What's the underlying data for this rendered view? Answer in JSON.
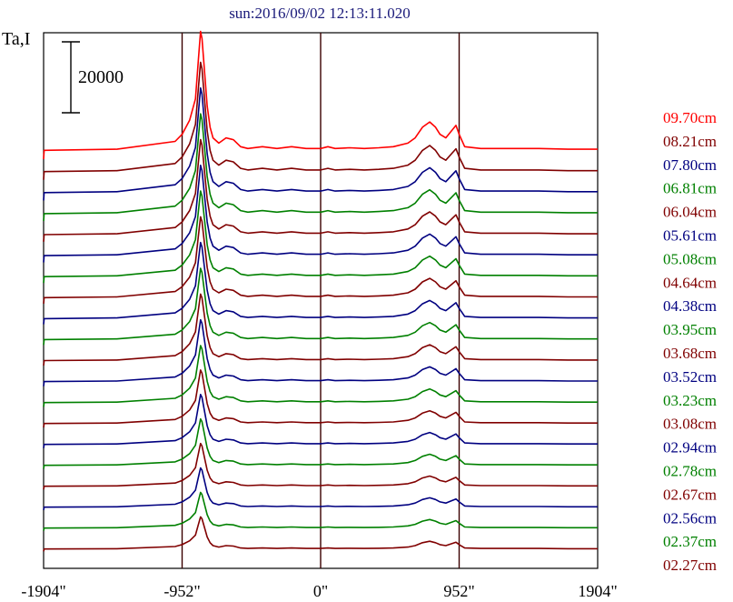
{
  "chart_data": {
    "type": "line",
    "title": "sun:2016/09/02 12:13:11.020",
    "ylabel": "Ta,I",
    "xlabel": "",
    "xlim": [
      -1904,
      1904
    ],
    "x_ticks": [
      {
        "value": -1904,
        "label": "-1904\""
      },
      {
        "value": -952,
        "label": "-952\""
      },
      {
        "value": 0,
        "label": "0\""
      },
      {
        "value": 952,
        "label": "952\""
      },
      {
        "value": 1904,
        "label": "1904\""
      }
    ],
    "vertical_lines": [
      -952,
      0,
      952
    ],
    "scale_bar": {
      "value": 20000,
      "label": "20000"
    },
    "grid": false,
    "legend_position": "right",
    "profile": {
      "x": [
        -1904,
        -1900,
        -1400,
        -1000,
        -952,
        -900,
        -860,
        -840,
        -825,
        -815,
        -800,
        -780,
        -760,
        -740,
        -700,
        -650,
        -600,
        -550,
        -500,
        -400,
        -300,
        -200,
        -100,
        0,
        50,
        100,
        200,
        300,
        400,
        500,
        600,
        650,
        700,
        750,
        790,
        820,
        860,
        900,
        930,
        952,
        990,
        1100,
        1300,
        1500,
        1700,
        1904
      ],
      "y": [
        0,
        2500,
        2800,
        5000,
        7000,
        11000,
        17000,
        28000,
        36000,
        34000,
        26000,
        15000,
        9000,
        6000,
        4500,
        6000,
        5500,
        3500,
        3000,
        3500,
        3000,
        3500,
        3000,
        3000,
        3500,
        3000,
        3200,
        3000,
        3200,
        3500,
        4500,
        6000,
        9000,
        10500,
        9000,
        7000,
        6000,
        8000,
        9500,
        7000,
        3500,
        3000,
        3000,
        3000,
        2800,
        2800
      ]
    },
    "series": [
      {
        "name": "09.70cm",
        "color": "#ff0000",
        "scale": 1.0
      },
      {
        "name": "08.21cm",
        "color": "#800000",
        "scale": 0.92
      },
      {
        "name": "07.80cm",
        "color": "#000080",
        "scale": 0.88
      },
      {
        "name": "06.81cm",
        "color": "#008000",
        "scale": 0.84
      },
      {
        "name": "06.04cm",
        "color": "#800000",
        "scale": 0.8
      },
      {
        "name": "05.61cm",
        "color": "#000080",
        "scale": 0.76
      },
      {
        "name": "05.08cm",
        "color": "#008000",
        "scale": 0.72
      },
      {
        "name": "04.64cm",
        "color": "#800000",
        "scale": 0.68
      },
      {
        "name": "04.38cm",
        "color": "#000080",
        "scale": 0.64
      },
      {
        "name": "03.95cm",
        "color": "#008000",
        "scale": 0.6
      },
      {
        "name": "03.68cm",
        "color": "#800000",
        "scale": 0.56
      },
      {
        "name": "03.52cm",
        "color": "#000080",
        "scale": 0.52
      },
      {
        "name": "03.23cm",
        "color": "#008000",
        "scale": 0.48
      },
      {
        "name": "03.08cm",
        "color": "#800000",
        "scale": 0.45
      },
      {
        "name": "02.94cm",
        "color": "#000080",
        "scale": 0.42
      },
      {
        "name": "02.78cm",
        "color": "#008000",
        "scale": 0.39
      },
      {
        "name": "02.67cm",
        "color": "#800000",
        "scale": 0.36
      },
      {
        "name": "02.56cm",
        "color": "#000080",
        "scale": 0.33
      },
      {
        "name": "02.37cm",
        "color": "#008000",
        "scale": 0.3
      },
      {
        "name": "02.27cm",
        "color": "#800000",
        "scale": 0.27
      }
    ]
  }
}
